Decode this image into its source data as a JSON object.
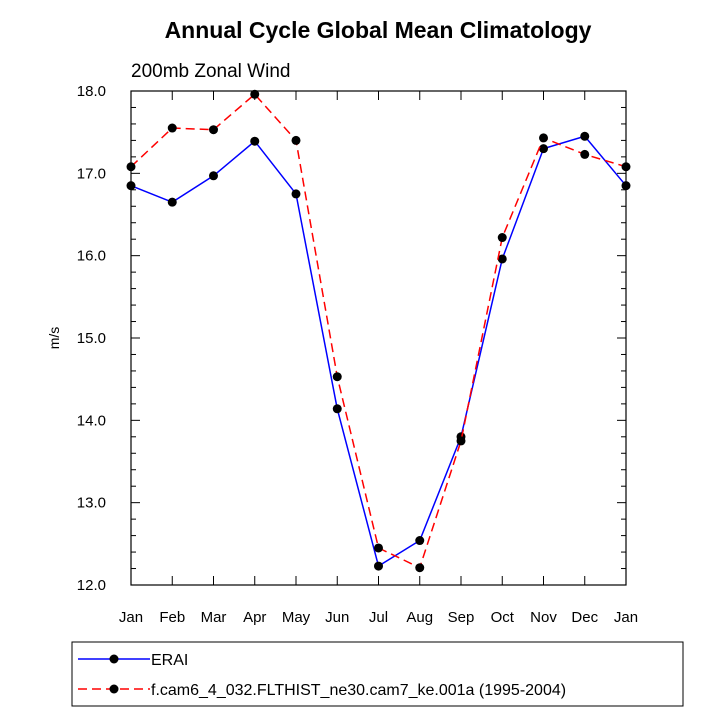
{
  "chart_data": {
    "type": "line",
    "title": "Annual Cycle Global Mean Climatology",
    "subtitle": "200mb Zonal Wind",
    "xlabel": "",
    "ylabel": "m/s",
    "categories": [
      "Jan",
      "Feb",
      "Mar",
      "Apr",
      "May",
      "Jun",
      "Jul",
      "Aug",
      "Sep",
      "Oct",
      "Nov",
      "Dec",
      "Jan"
    ],
    "ylim": [
      12.0,
      18.0
    ],
    "yticks": [
      "12.0",
      "13.0",
      "14.0",
      "15.0",
      "16.0",
      "17.0",
      "18.0"
    ],
    "grid": false,
    "legend_position": "bottom",
    "series": [
      {
        "name": "ERAI",
        "color": "#0000ff",
        "style": "solid",
        "values": [
          16.85,
          16.65,
          16.97,
          17.39,
          16.75,
          14.14,
          12.23,
          12.54,
          13.8,
          15.96,
          17.3,
          17.45,
          16.85
        ]
      },
      {
        "name": "f.cam6_4_032.FLTHIST_ne30.cam7_ke.001a (1995-2004)",
        "color": "#ff0000",
        "style": "dashed",
        "values": [
          17.08,
          17.55,
          17.53,
          17.96,
          17.4,
          14.53,
          12.45,
          12.21,
          13.75,
          16.22,
          17.43,
          17.23,
          17.08
        ]
      }
    ]
  }
}
